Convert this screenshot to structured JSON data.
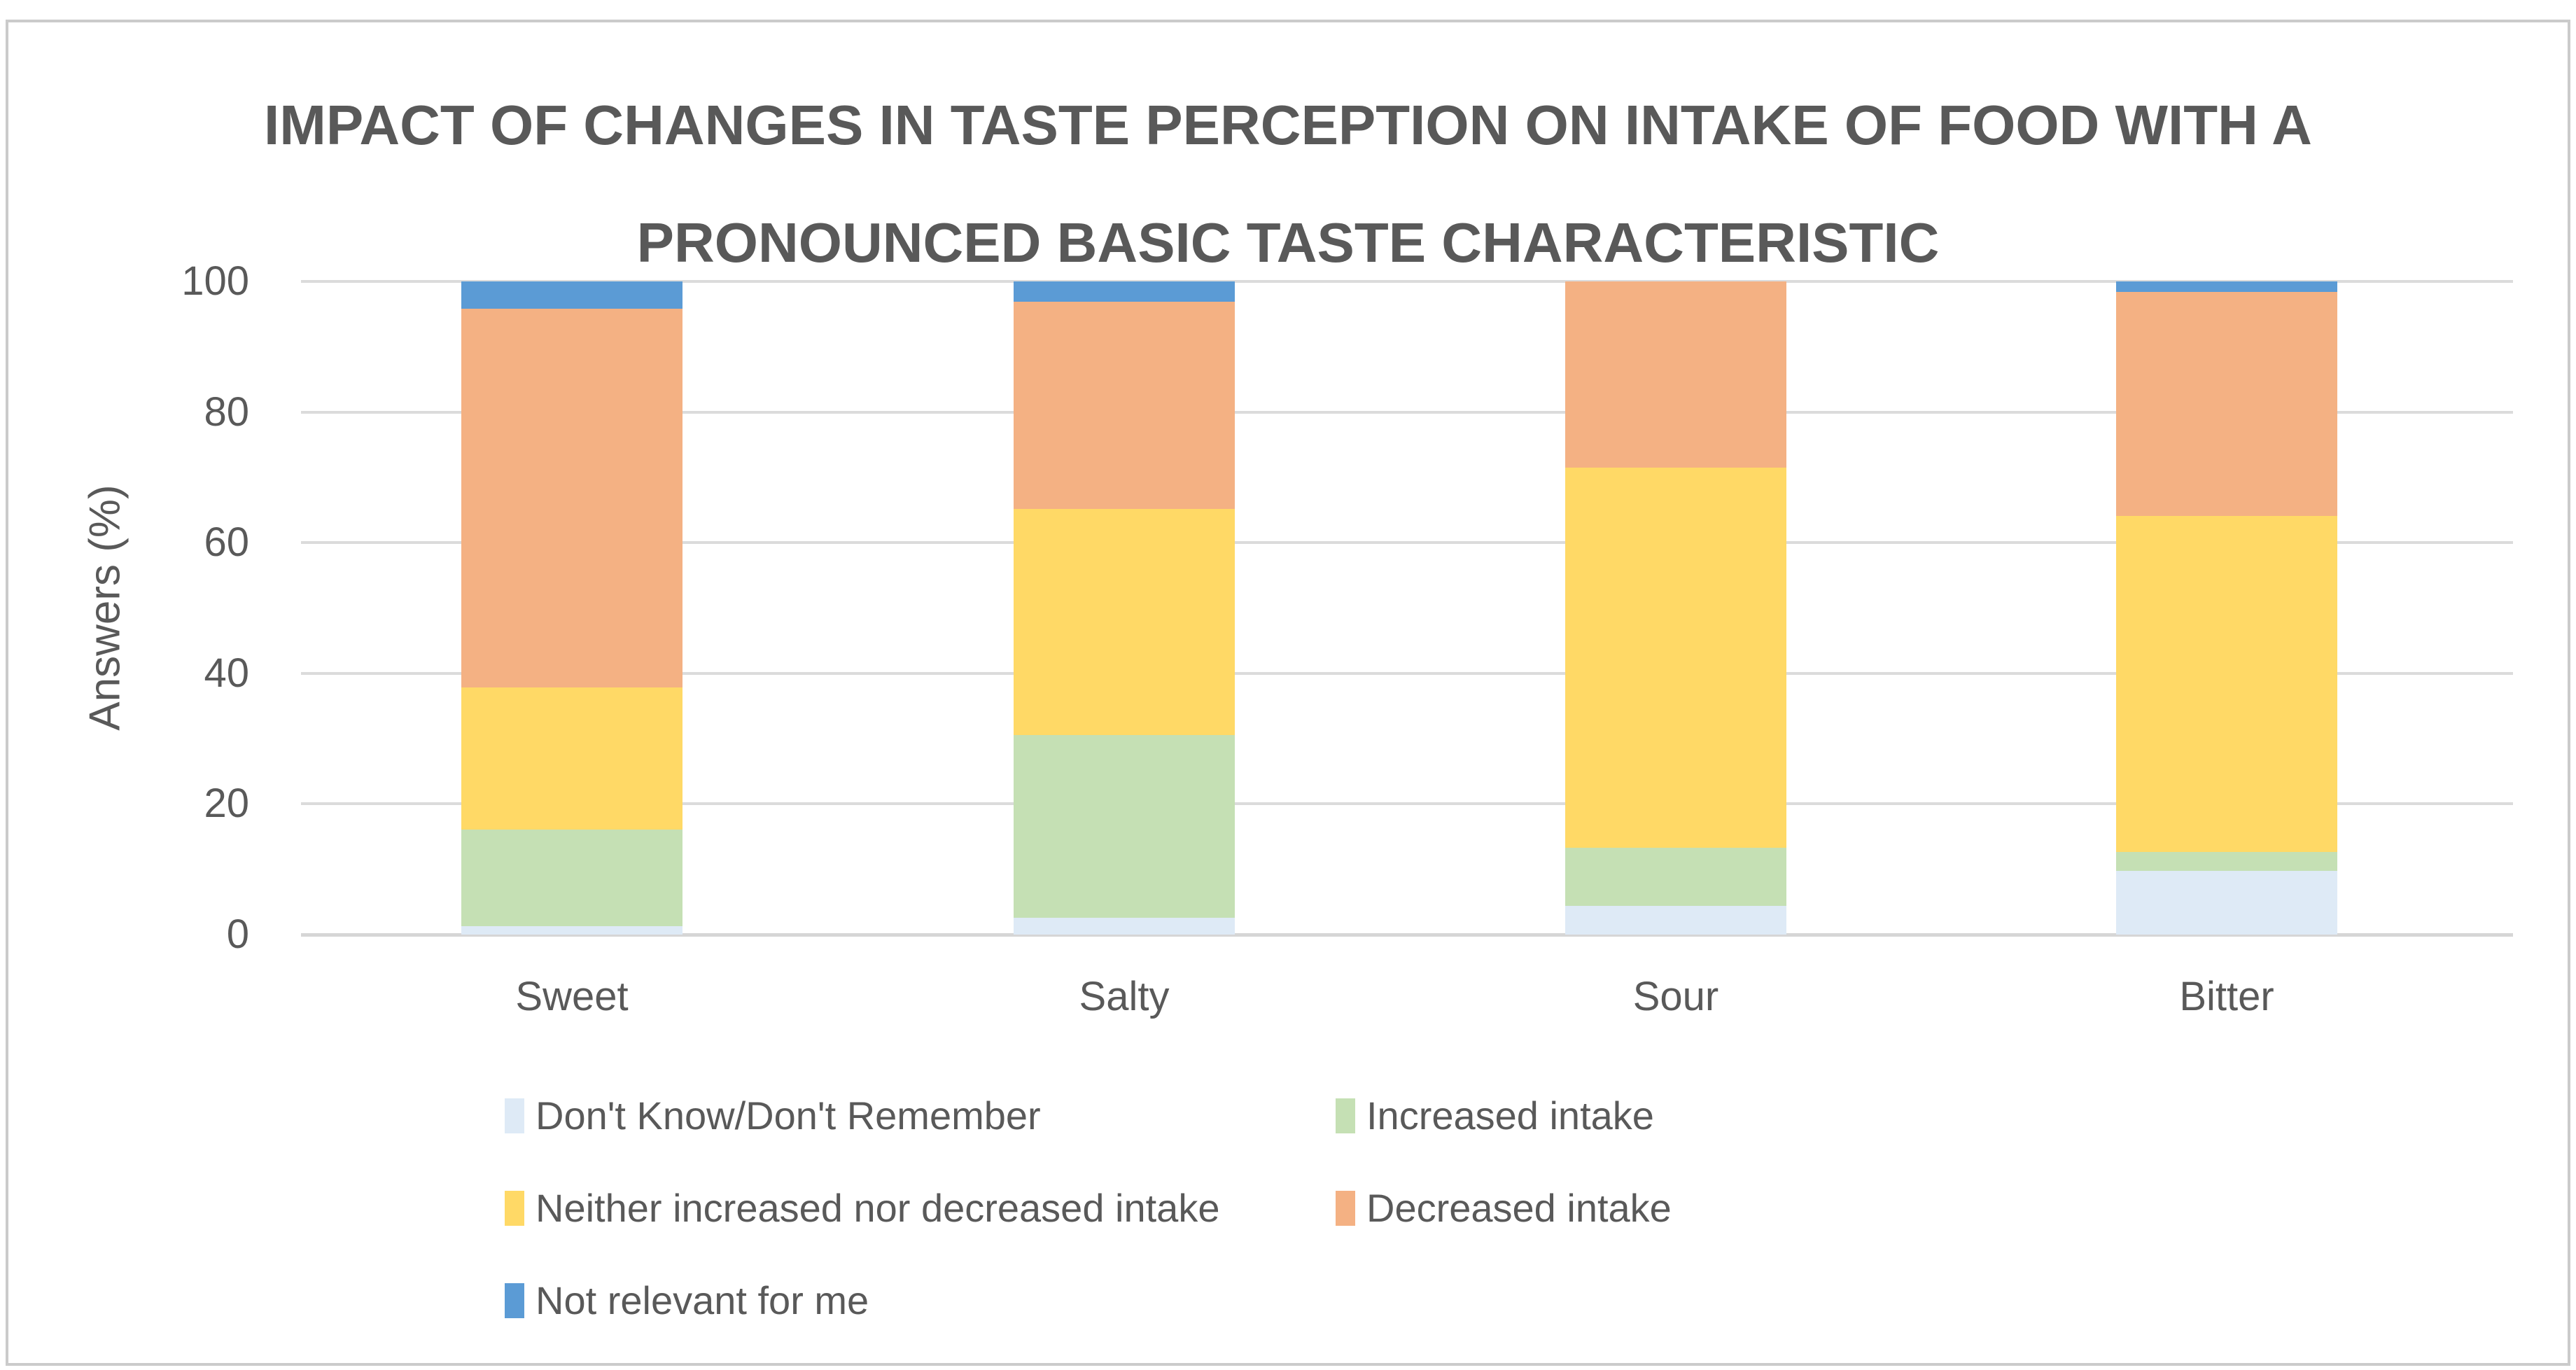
{
  "title_lines": [
    "IMPACT OF CHANGES IN TASTE PERCEPTION ON INTAKE OF FOOD WITH A",
    "PRONOUNCED BASIC TASTE CHARACTERISTIC"
  ],
  "chart_data": {
    "type": "bar",
    "stacked": true,
    "title": "IMPACT OF CHANGES IN TASTE PERCEPTION ON INTAKE OF FOOD WITH A PRONOUNCED BASIC TASTE CHARACTERISTIC",
    "ylabel": "Answers (%)",
    "xlabel": "",
    "ylim": [
      0,
      100
    ],
    "yticks": [
      0,
      20,
      40,
      60,
      80,
      100
    ],
    "grid": true,
    "legend_position": "bottom",
    "categories": [
      "Sweet",
      "Salty",
      "Sour",
      "Bitter"
    ],
    "series": [
      {
        "name": "Don't Know/Don't Remember",
        "color": "#DEEAF6",
        "values": [
          1.3,
          2.6,
          4.4,
          9.8
        ]
      },
      {
        "name": "Increased intake",
        "color": "#C5E0B4",
        "values": [
          14.8,
          27.9,
          8.9,
          2.9
        ]
      },
      {
        "name": "Neither increased nor decreased intake",
        "color": "#FFD966",
        "values": [
          21.7,
          34.7,
          58.2,
          51.4
        ]
      },
      {
        "name": "Decreased intake",
        "color": "#F4B183",
        "values": [
          58.0,
          31.7,
          28.5,
          34.3
        ]
      },
      {
        "name": "Not relevant for me",
        "color": "#5B9BD5",
        "values": [
          4.2,
          3.1,
          0,
          1.6
        ]
      }
    ],
    "colors": {
      "text": "#595959",
      "gridline": "#DBDBDB",
      "axis_line": "#D6D6D6",
      "frame_border": "#CBCBCB"
    },
    "legend_rows": [
      [
        0,
        1
      ],
      [
        2,
        3
      ],
      [
        4
      ]
    ]
  }
}
